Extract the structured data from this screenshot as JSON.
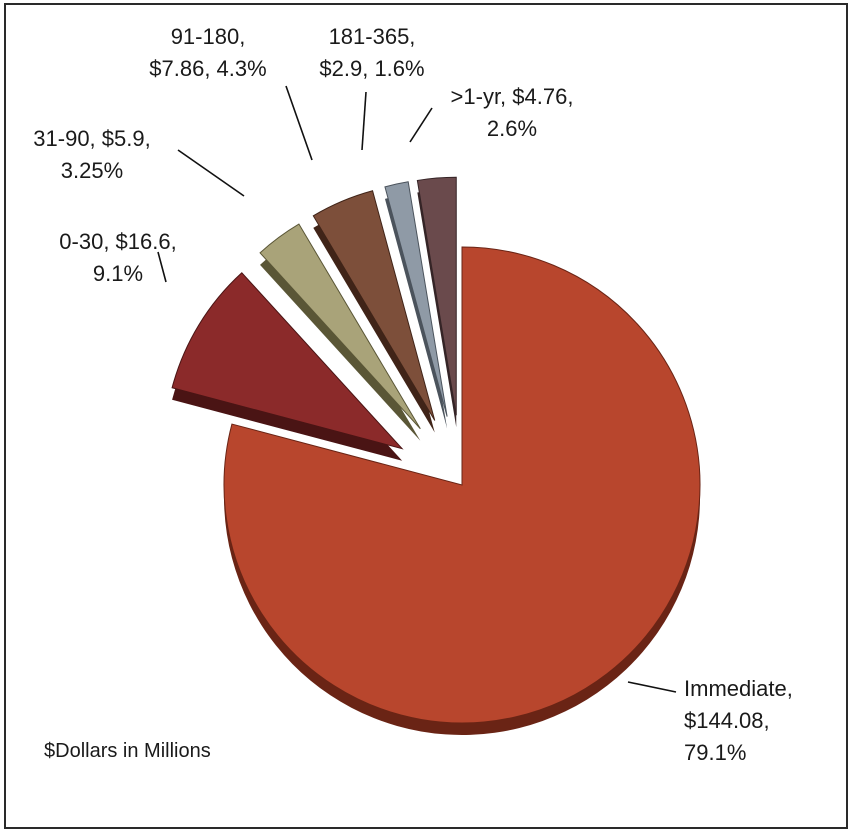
{
  "chart_data": {
    "type": "pie",
    "note": "$Dollars in Millions",
    "slices": [
      {
        "category": "Immediate",
        "value": 144.08,
        "percent": 79.1,
        "label_lines": [
          "Immediate,",
          "$144.08,",
          "79.1%"
        ],
        "color": "#b8462d",
        "dark": "#6a2415"
      },
      {
        "category": "0-30",
        "value": 16.6,
        "percent": 9.1,
        "label_lines": [
          "0-30, $16.6,",
          "9.1%"
        ],
        "color": "#8b2a2a",
        "dark": "#4a1414"
      },
      {
        "category": "31-90",
        "value": 5.9,
        "percent": 3.25,
        "label_lines": [
          "31-90, $5.9,",
          "3.25%"
        ],
        "color": "#a9a379",
        "dark": "#5a5636"
      },
      {
        "category": "91-180",
        "value": 7.86,
        "percent": 4.3,
        "label_lines": [
          "91-180,",
          "$7.86, 4.3%"
        ],
        "color": "#7d4f3a",
        "dark": "#402418"
      },
      {
        "category": "181-365",
        "value": 2.9,
        "percent": 1.6,
        "label_lines": [
          "181-365,",
          "$2.9, 1.6%"
        ],
        "color": "#8f9aa6",
        "dark": "#4b535c"
      },
      {
        "category": ">1-yr",
        "value": 4.76,
        "percent": 2.6,
        "label_lines": [
          ">1-yr, $4.76,",
          "2.6%"
        ],
        "color": "#6a4a4c",
        "dark": "#352426"
      }
    ]
  }
}
